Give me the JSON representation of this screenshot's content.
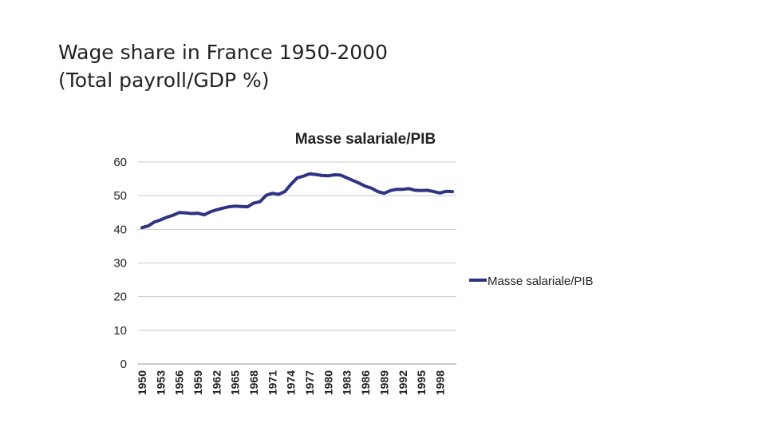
{
  "slide": {
    "title_line1": "Wage share in France 1950-2000",
    "title_line2": "(Total payroll/GDP %)"
  },
  "colors": {
    "series": "#2e3383",
    "grid": "#c8c8c8",
    "axis": "#999999"
  },
  "chart_data": {
    "type": "line",
    "title": "Masse salariale/PIB",
    "xlabel": "",
    "ylabel": "",
    "ylim": [
      0,
      60
    ],
    "yticks": [
      0,
      10,
      20,
      30,
      40,
      50,
      60
    ],
    "grid": true,
    "legend_position": "right",
    "tick_labels": [
      "1950",
      "1953",
      "1956",
      "1959",
      "1962",
      "1965",
      "1968",
      "1971",
      "1974",
      "1977",
      "1980",
      "1983",
      "1986",
      "1989",
      "1992",
      "1995",
      "1998"
    ],
    "x": [
      1950,
      1951,
      1952,
      1953,
      1954,
      1955,
      1956,
      1957,
      1958,
      1959,
      1960,
      1961,
      1962,
      1963,
      1964,
      1965,
      1966,
      1967,
      1968,
      1969,
      1970,
      1971,
      1972,
      1973,
      1974,
      1975,
      1976,
      1977,
      1978,
      1979,
      1980,
      1981,
      1982,
      1983,
      1984,
      1985,
      1986,
      1987,
      1988,
      1989,
      1990,
      1991,
      1992,
      1993,
      1994,
      1995,
      1996,
      1997,
      1998,
      1999,
      2000
    ],
    "series": [
      {
        "name": "Masse salariale/PIB",
        "values": [
          40.5,
          41.0,
          42.2,
          42.8,
          43.6,
          44.2,
          45.0,
          44.9,
          44.7,
          44.8,
          44.3,
          45.2,
          45.8,
          46.3,
          46.7,
          46.9,
          46.8,
          46.7,
          47.8,
          48.2,
          50.1,
          50.7,
          50.4,
          51.2,
          53.4,
          55.3,
          55.8,
          56.5,
          56.3,
          56.0,
          55.9,
          56.2,
          56.1,
          55.3,
          54.5,
          53.7,
          52.8,
          52.2,
          51.2,
          50.7,
          51.5,
          51.9,
          51.9,
          52.1,
          51.6,
          51.5,
          51.6,
          51.2,
          50.8,
          51.3,
          51.2
        ]
      }
    ]
  }
}
